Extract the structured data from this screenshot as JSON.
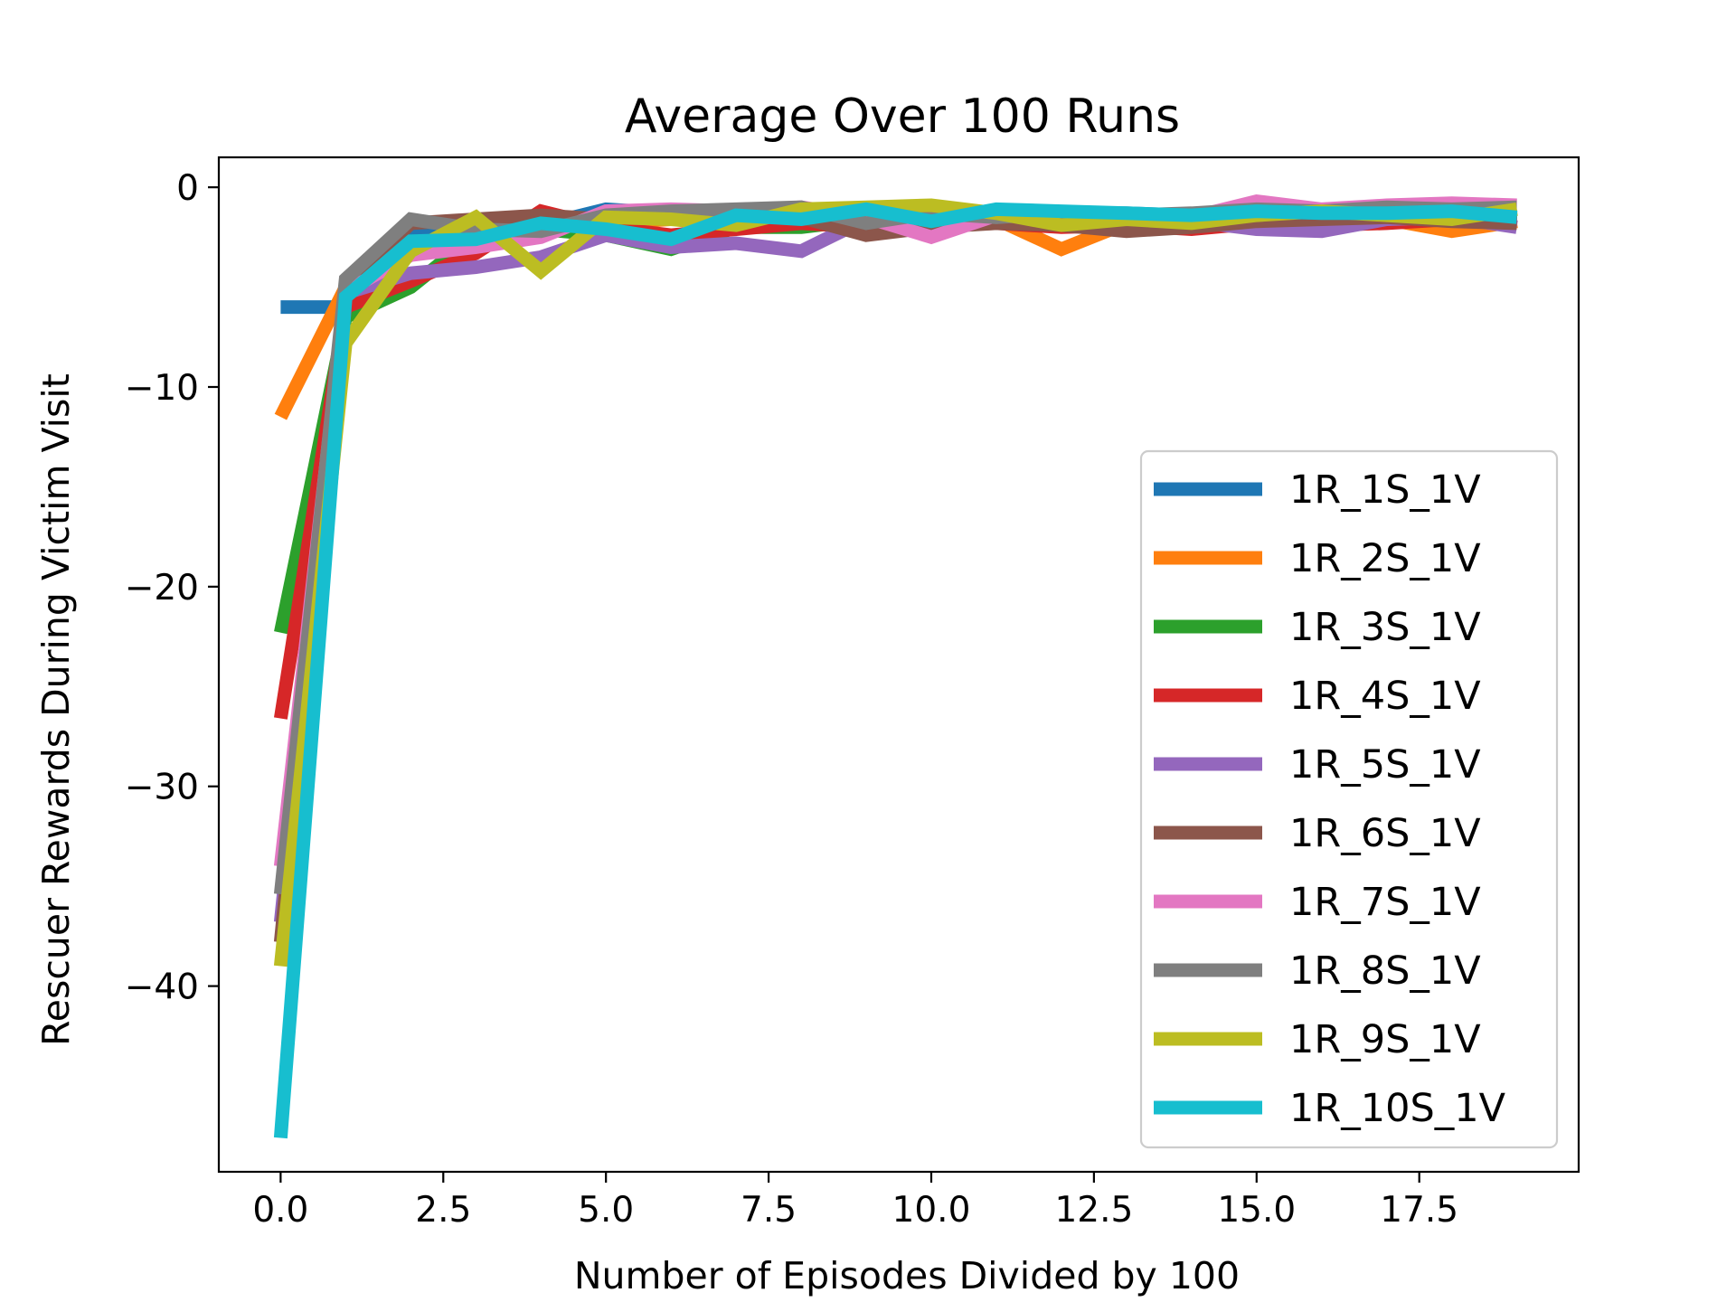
{
  "chart_data": {
    "type": "line",
    "title": "Average Over 100 Runs",
    "xlabel": "Number of Episodes Divided by 100",
    "ylabel": "Rescuer Rewards During Victim Visit",
    "xlim": [
      -0.95,
      19.95
    ],
    "ylim": [
      -49.3,
      1.5
    ],
    "xticks": [
      "0.0",
      "2.5",
      "5.0",
      "7.5",
      "10.0",
      "12.5",
      "15.0",
      "17.5"
    ],
    "xtick_values": [
      0,
      2.5,
      5,
      7.5,
      10,
      12.5,
      15,
      17.5
    ],
    "yticks": [
      "0",
      "−10",
      "−20",
      "−30",
      "−40"
    ],
    "ytick_values": [
      0,
      -10,
      -20,
      -30,
      -40
    ],
    "grid": false,
    "legend_position": "center-right",
    "x": [
      0,
      1,
      2,
      3,
      4,
      5,
      6,
      7,
      8,
      9,
      10,
      11,
      12,
      13,
      14,
      15,
      16,
      17,
      18,
      19
    ],
    "series": [
      {
        "name": "1R_1S_1V",
        "color": "#1f77b4",
        "values": [
          -6.0,
          -6.0,
          -2.2,
          -2.0,
          -1.9,
          -1.1,
          -1.3,
          -1.2,
          -1.2,
          -1.3,
          -1.3,
          -1.2,
          -1.3,
          -1.3,
          -1.4,
          -1.3,
          -1.4,
          -1.3,
          -1.4,
          -1.3
        ]
      },
      {
        "name": "1R_2S_1V",
        "color": "#ff7f0e",
        "values": [
          -11.5,
          -5.0,
          -3.0,
          -2.6,
          -2.2,
          -1.8,
          -1.6,
          -1.6,
          -1.5,
          -1.4,
          -1.3,
          -1.6,
          -3.1,
          -1.8,
          -1.7,
          -1.5,
          -1.5,
          -1.6,
          -2.2,
          -1.7
        ]
      },
      {
        "name": "1R_3S_1V",
        "color": "#2ca02c",
        "values": [
          -22.3,
          -6.5,
          -5.0,
          -2.4,
          -2.1,
          -2.4,
          -3.1,
          -2.0,
          -2.0,
          -1.6,
          -1.4,
          -1.6,
          -1.7,
          -1.8,
          -1.7,
          -1.5,
          -1.6,
          -1.5,
          -1.4,
          -1.5
        ]
      },
      {
        "name": "1R_4S_1V",
        "color": "#d62728",
        "values": [
          -26.6,
          -6.0,
          -4.7,
          -3.3,
          -1.2,
          -2.0,
          -2.4,
          -2.1,
          -1.8,
          -2.0,
          -1.9,
          -1.8,
          -2.0,
          -1.9,
          -2.1,
          -1.8,
          -1.9,
          -1.8,
          -1.6,
          -1.7
        ]
      },
      {
        "name": "1R_5S_1V",
        "color": "#9467bd",
        "values": [
          -36.8,
          -5.3,
          -4.3,
          -4.0,
          -3.5,
          -2.4,
          -3.0,
          -2.8,
          -3.2,
          -1.6,
          -1.8,
          -1.6,
          -1.7,
          -1.6,
          -1.7,
          -2.1,
          -2.2,
          -1.6,
          -1.5,
          -2.0
        ]
      },
      {
        "name": "1R_6S_1V",
        "color": "#8c564b",
        "values": [
          -37.8,
          -5.0,
          -1.8,
          -1.6,
          -1.4,
          -1.6,
          -1.3,
          -1.3,
          -1.5,
          -2.4,
          -2.0,
          -1.8,
          -1.9,
          -2.2,
          -2.0,
          -1.7,
          -1.6,
          -1.5,
          -1.7,
          -1.8
        ]
      },
      {
        "name": "1R_7S_1V",
        "color": "#e377c2",
        "values": [
          -34.0,
          -5.2,
          -3.4,
          -3.0,
          -2.5,
          -1.2,
          -1.1,
          -1.2,
          -1.0,
          -1.5,
          -2.5,
          -1.4,
          -1.5,
          -1.4,
          -1.5,
          -0.7,
          -1.1,
          -0.9,
          -0.8,
          -0.9
        ]
      },
      {
        "name": "1R_8S_1V",
        "color": "#7f7f7f",
        "values": [
          -35.4,
          -4.6,
          -1.6,
          -2.1,
          -2.2,
          -1.4,
          -1.2,
          -1.1,
          -1.0,
          -1.8,
          -1.3,
          -1.5,
          -1.3,
          -1.4,
          -1.3,
          -1.1,
          -1.2,
          -1.0,
          -1.1,
          -1.0
        ]
      },
      {
        "name": "1R_9S_1V",
        "color": "#bcbd22",
        "values": [
          -39.0,
          -7.8,
          -3.2,
          -1.5,
          -4.2,
          -1.5,
          -1.6,
          -1.9,
          -1.1,
          -1.0,
          -0.9,
          -1.3,
          -1.9,
          -1.6,
          -1.8,
          -1.4,
          -1.2,
          -1.4,
          -1.6,
          -1.1
        ]
      },
      {
        "name": "1R_10S_1V",
        "color": "#17becf",
        "values": [
          -47.6,
          -5.5,
          -2.7,
          -2.6,
          -1.8,
          -2.1,
          -2.6,
          -1.4,
          -1.6,
          -1.1,
          -1.7,
          -1.1,
          -1.2,
          -1.3,
          -1.4,
          -1.2,
          -1.3,
          -1.3,
          -1.2,
          -1.5
        ]
      }
    ]
  }
}
